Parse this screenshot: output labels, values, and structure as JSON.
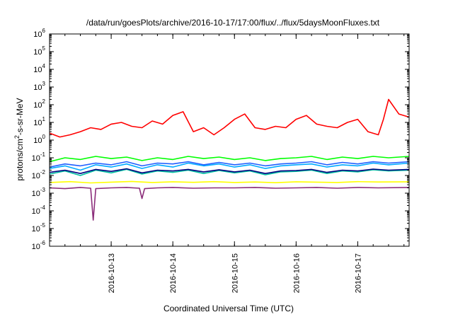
{
  "chart_data": {
    "type": "line",
    "title": "/data/run/goesPlots/archive/2016-10-17/17:00/flux/../flux/5daysMoonFluxes.txt",
    "xlabel": "Coordinated Universal Time (UTC)",
    "ylabel_parts": {
      "base": "protons/cm",
      "sup": "2",
      "rest": "-s-sr-MeV"
    },
    "x_scale": "time",
    "x_range": [
      "2016-10-12 00:00",
      "2016-10-17 20:00"
    ],
    "x_ticks": [
      "2016-10-13",
      "2016-10-14",
      "2016-10-15",
      "2016-10-16",
      "2016-10-17"
    ],
    "y_scale": "log",
    "ylim": [
      1e-06,
      1000000.0
    ],
    "y_ticks": [
      {
        "base": "10",
        "exp": "-6"
      },
      {
        "base": "10",
        "exp": "-5"
      },
      {
        "base": "10",
        "exp": "-4"
      },
      {
        "base": "10",
        "exp": "-3"
      },
      {
        "base": "10",
        "exp": "-2"
      },
      {
        "base": "10",
        "exp": "-1"
      },
      {
        "base": "10",
        "exp": "0"
      },
      {
        "base": "10",
        "exp": "1"
      },
      {
        "base": "10",
        "exp": "2"
      },
      {
        "base": "10",
        "exp": "3"
      },
      {
        "base": "10",
        "exp": "4"
      },
      {
        "base": "10",
        "exp": "5"
      },
      {
        "base": "10",
        "exp": "6"
      }
    ],
    "grid": false,
    "legend": "none",
    "series": [
      {
        "color": "#ff0000",
        "x": [
          "2016-10-12 00:00",
          "2016-10-12 04:00",
          "2016-10-12 08:00",
          "2016-10-12 12:00",
          "2016-10-12 16:00",
          "2016-10-12 20:00",
          "2016-10-13 00:00",
          "2016-10-13 04:00",
          "2016-10-13 08:00",
          "2016-10-13 12:00",
          "2016-10-13 16:00",
          "2016-10-13 20:00",
          "2016-10-14 00:00",
          "2016-10-14 04:00",
          "2016-10-14 08:00",
          "2016-10-14 12:00",
          "2016-10-14 16:00",
          "2016-10-14 20:00",
          "2016-10-15 00:00",
          "2016-10-15 04:00",
          "2016-10-15 08:00",
          "2016-10-15 12:00",
          "2016-10-15 16:00",
          "2016-10-15 20:00",
          "2016-10-16 00:00",
          "2016-10-16 04:00",
          "2016-10-16 08:00",
          "2016-10-16 12:00",
          "2016-10-16 16:00",
          "2016-10-16 20:00",
          "2016-10-17 00:00",
          "2016-10-17 04:00",
          "2016-10-17 08:00",
          "2016-10-17 10:00",
          "2016-10-17 12:00",
          "2016-10-17 16:00",
          "2016-10-17 20:00"
        ],
        "y": [
          2.5,
          1.5,
          2,
          3,
          5,
          4,
          8,
          10,
          6,
          5,
          12,
          8,
          25,
          40,
          3,
          5,
          2,
          5,
          15,
          30,
          5,
          4,
          6,
          5,
          15,
          25,
          8,
          6,
          5,
          10,
          15,
          3,
          2,
          15,
          200,
          30,
          20
        ]
      },
      {
        "color": "#00ff00",
        "x": [
          "2016-10-12 00:00",
          "2016-10-12 06:00",
          "2016-10-12 12:00",
          "2016-10-12 18:00",
          "2016-10-13 00:00",
          "2016-10-13 06:00",
          "2016-10-13 12:00",
          "2016-10-13 18:00",
          "2016-10-14 00:00",
          "2016-10-14 06:00",
          "2016-10-14 12:00",
          "2016-10-14 18:00",
          "2016-10-15 00:00",
          "2016-10-15 06:00",
          "2016-10-15 12:00",
          "2016-10-15 18:00",
          "2016-10-16 00:00",
          "2016-10-16 06:00",
          "2016-10-16 12:00",
          "2016-10-16 18:00",
          "2016-10-17 00:00",
          "2016-10-17 06:00",
          "2016-10-17 12:00",
          "2016-10-17 20:00"
        ],
        "y": [
          0.06,
          0.1,
          0.08,
          0.12,
          0.09,
          0.11,
          0.07,
          0.1,
          0.08,
          0.12,
          0.09,
          0.11,
          0.08,
          0.1,
          0.07,
          0.09,
          0.1,
          0.12,
          0.08,
          0.11,
          0.09,
          0.12,
          0.1,
          0.12
        ]
      },
      {
        "color": "#00aaff",
        "x": [
          "2016-10-12 00:00",
          "2016-10-12 06:00",
          "2016-10-12 12:00",
          "2016-10-12 18:00",
          "2016-10-13 00:00",
          "2016-10-13 06:00",
          "2016-10-13 12:00",
          "2016-10-13 18:00",
          "2016-10-14 00:00",
          "2016-10-14 06:00",
          "2016-10-14 12:00",
          "2016-10-14 18:00",
          "2016-10-15 00:00",
          "2016-10-15 06:00",
          "2016-10-15 12:00",
          "2016-10-15 18:00",
          "2016-10-16 00:00",
          "2016-10-16 06:00",
          "2016-10-16 12:00",
          "2016-10-16 18:00",
          "2016-10-17 00:00",
          "2016-10-17 06:00",
          "2016-10-17 12:00",
          "2016-10-17 20:00"
        ],
        "y": [
          0.025,
          0.035,
          0.02,
          0.04,
          0.03,
          0.045,
          0.025,
          0.04,
          0.03,
          0.05,
          0.035,
          0.045,
          0.03,
          0.04,
          0.025,
          0.035,
          0.04,
          0.045,
          0.03,
          0.04,
          0.035,
          0.05,
          0.04,
          0.05
        ]
      },
      {
        "color": "#1f5fff",
        "x": [
          "2016-10-12 00:00",
          "2016-10-12 06:00",
          "2016-10-12 12:00",
          "2016-10-12 18:00",
          "2016-10-13 00:00",
          "2016-10-13 06:00",
          "2016-10-13 12:00",
          "2016-10-13 18:00",
          "2016-10-14 00:00",
          "2016-10-14 06:00",
          "2016-10-14 12:00",
          "2016-10-14 18:00",
          "2016-10-15 00:00",
          "2016-10-15 06:00",
          "2016-10-15 12:00",
          "2016-10-15 18:00",
          "2016-10-16 00:00",
          "2016-10-16 06:00",
          "2016-10-16 12:00",
          "2016-10-16 18:00",
          "2016-10-17 00:00",
          "2016-10-17 06:00",
          "2016-10-17 12:00",
          "2016-10-17 20:00"
        ],
        "y": [
          0.03,
          0.045,
          0.035,
          0.05,
          0.04,
          0.06,
          0.035,
          0.05,
          0.045,
          0.06,
          0.04,
          0.055,
          0.04,
          0.05,
          0.035,
          0.045,
          0.05,
          0.06,
          0.04,
          0.055,
          0.045,
          0.06,
          0.05,
          0.06
        ]
      },
      {
        "color": "#00bfa0",
        "x": [
          "2016-10-12 00:00",
          "2016-10-12 06:00",
          "2016-10-12 12:00",
          "2016-10-12 18:00",
          "2016-10-13 00:00",
          "2016-10-13 06:00",
          "2016-10-13 12:00",
          "2016-10-13 18:00",
          "2016-10-14 00:00",
          "2016-10-14 06:00",
          "2016-10-14 12:00",
          "2016-10-14 18:00",
          "2016-10-15 00:00",
          "2016-10-15 06:00",
          "2016-10-15 12:00",
          "2016-10-15 18:00",
          "2016-10-16 00:00",
          "2016-10-16 06:00",
          "2016-10-16 12:00",
          "2016-10-16 18:00",
          "2016-10-17 00:00",
          "2016-10-17 06:00",
          "2016-10-17 12:00",
          "2016-10-17 20:00"
        ],
        "y": [
          0.012,
          0.018,
          0.01,
          0.02,
          0.014,
          0.022,
          0.012,
          0.018,
          0.015,
          0.02,
          0.013,
          0.019,
          0.014,
          0.018,
          0.011,
          0.016,
          0.017,
          0.02,
          0.013,
          0.018,
          0.016,
          0.021,
          0.018,
          0.02
        ]
      },
      {
        "color": "#000080",
        "x": [
          "2016-10-12 00:00",
          "2016-10-12 06:00",
          "2016-10-12 12:00",
          "2016-10-12 18:00",
          "2016-10-13 00:00",
          "2016-10-13 06:00",
          "2016-10-13 12:00",
          "2016-10-13 18:00",
          "2016-10-14 00:00",
          "2016-10-14 06:00",
          "2016-10-14 12:00",
          "2016-10-14 18:00",
          "2016-10-15 00:00",
          "2016-10-15 06:00",
          "2016-10-15 12:00",
          "2016-10-15 18:00",
          "2016-10-16 00:00",
          "2016-10-16 06:00",
          "2016-10-16 12:00",
          "2016-10-16 18:00",
          "2016-10-17 00:00",
          "2016-10-17 06:00",
          "2016-10-17 12:00",
          "2016-10-17 20:00"
        ],
        "y": [
          0.015,
          0.02,
          0.013,
          0.022,
          0.017,
          0.024,
          0.014,
          0.02,
          0.018,
          0.022,
          0.016,
          0.021,
          0.016,
          0.02,
          0.013,
          0.018,
          0.019,
          0.022,
          0.015,
          0.02,
          0.018,
          0.023,
          0.02,
          0.022
        ]
      },
      {
        "color": "#ffff00",
        "x": [
          "2016-10-12 00:00",
          "2016-10-12 08:00",
          "2016-10-12 16:00",
          "2016-10-13 00:00",
          "2016-10-13 08:00",
          "2016-10-13 16:00",
          "2016-10-14 00:00",
          "2016-10-14 08:00",
          "2016-10-14 16:00",
          "2016-10-15 00:00",
          "2016-10-15 08:00",
          "2016-10-15 16:00",
          "2016-10-16 00:00",
          "2016-10-16 08:00",
          "2016-10-16 16:00",
          "2016-10-17 00:00",
          "2016-10-17 08:00",
          "2016-10-17 20:00"
        ],
        "y": [
          0.004,
          0.0045,
          0.0038,
          0.0042,
          0.0046,
          0.004,
          0.0044,
          0.0041,
          0.0045,
          0.004,
          0.0043,
          0.0039,
          0.0044,
          0.0042,
          0.004,
          0.0045,
          0.0043,
          0.0044
        ]
      },
      {
        "color": "#8b2d7a",
        "x": [
          "2016-10-12 00:00",
          "2016-10-12 06:00",
          "2016-10-12 12:00",
          "2016-10-12 16:00",
          "2016-10-12 17:00",
          "2016-10-12 18:00",
          "2016-10-13 00:00",
          "2016-10-13 06:00",
          "2016-10-13 11:00",
          "2016-10-13 12:00",
          "2016-10-13 13:00",
          "2016-10-13 18:00",
          "2016-10-14 00:00",
          "2016-10-14 08:00",
          "2016-10-14 16:00",
          "2016-10-15 00:00",
          "2016-10-15 08:00",
          "2016-10-15 16:00",
          "2016-10-16 00:00",
          "2016-10-16 08:00",
          "2016-10-16 16:00",
          "2016-10-17 00:00",
          "2016-10-17 08:00",
          "2016-10-17 20:00"
        ],
        "y": [
          0.002,
          0.0018,
          0.0021,
          0.0019,
          3e-05,
          0.0018,
          0.002,
          0.0021,
          0.0019,
          0.0005,
          0.0018,
          0.002,
          0.0021,
          0.0019,
          0.002,
          0.002,
          0.0021,
          0.0019,
          0.002,
          0.0021,
          0.0019,
          0.0021,
          0.002,
          0.0021
        ]
      }
    ]
  }
}
